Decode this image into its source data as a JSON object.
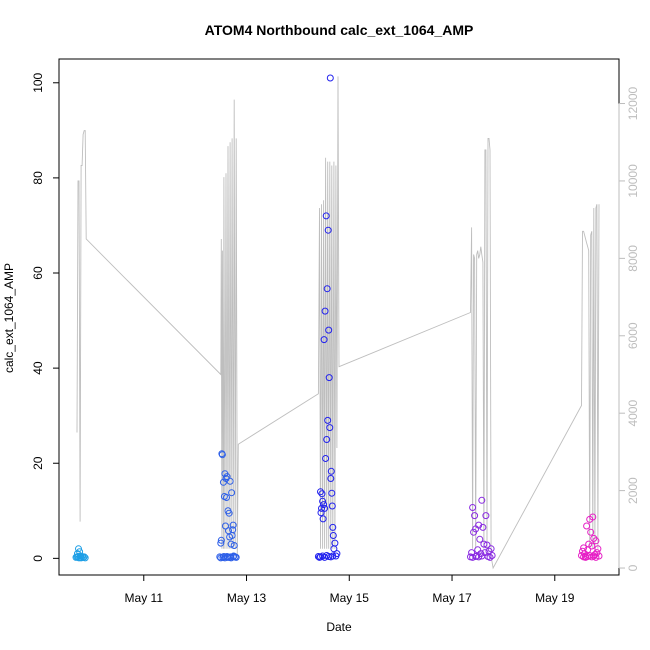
{
  "chart_data": {
    "type": "scatter",
    "title": "ATOM4 Northbound calc_ext_1064_AMP",
    "xlabel": "Date",
    "ylabel": "calc_ext_1064_AMP",
    "x_ticks": [
      "May 11",
      "May 13",
      "May 15",
      "May 17",
      "May 19"
    ],
    "x_tick_days": [
      11,
      13,
      15,
      17,
      19
    ],
    "xlim": [
      9.35,
      20.25
    ],
    "ylim": [
      -3.5,
      105
    ],
    "y_ticks": [
      0,
      20,
      40,
      60,
      80,
      100
    ],
    "y2lim": [
      -180,
      13150
    ],
    "y2_ticks": [
      0,
      2000,
      4000,
      6000,
      8000,
      10000,
      12000
    ],
    "grid": false,
    "secondary_series": {
      "name": "",
      "color": "#bebebe",
      "points": [
        [
          9.7,
          3500
        ],
        [
          9.72,
          10000
        ],
        [
          9.74,
          10000
        ],
        [
          9.76,
          1200
        ],
        [
          9.78,
          10400
        ],
        [
          9.8,
          10400
        ],
        [
          9.82,
          11200
        ],
        [
          9.84,
          11300
        ],
        [
          9.86,
          11300
        ],
        [
          9.88,
          8500
        ],
        [
          12.5,
          5000
        ],
        [
          12.51,
          8500
        ],
        [
          12.52,
          500
        ],
        [
          12.53,
          8200
        ],
        [
          12.55,
          500
        ],
        [
          12.56,
          10100
        ],
        [
          12.58,
          500
        ],
        [
          12.6,
          10200
        ],
        [
          12.62,
          500
        ],
        [
          12.64,
          10900
        ],
        [
          12.66,
          500
        ],
        [
          12.68,
          11000
        ],
        [
          12.7,
          500
        ],
        [
          12.72,
          11100
        ],
        [
          12.74,
          500
        ],
        [
          12.76,
          12100
        ],
        [
          12.78,
          500
        ],
        [
          12.8,
          11100
        ],
        [
          12.82,
          300
        ],
        [
          12.84,
          3200
        ],
        [
          14.4,
          4500
        ],
        [
          14.42,
          9300
        ],
        [
          14.44,
          500
        ],
        [
          14.46,
          9400
        ],
        [
          14.48,
          500
        ],
        [
          14.5,
          9500
        ],
        [
          14.52,
          500
        ],
        [
          14.54,
          10600
        ],
        [
          14.56,
          500
        ],
        [
          14.58,
          10500
        ],
        [
          14.6,
          500
        ],
        [
          14.62,
          10500
        ],
        [
          14.64,
          500
        ],
        [
          14.66,
          10400
        ],
        [
          14.68,
          500
        ],
        [
          14.7,
          10500
        ],
        [
          14.72,
          500
        ],
        [
          14.74,
          10400
        ],
        [
          14.76,
          3100
        ],
        [
          14.78,
          12700
        ],
        [
          14.8,
          5200
        ],
        [
          17.36,
          6600
        ],
        [
          17.38,
          8800
        ],
        [
          17.4,
          500
        ],
        [
          17.42,
          8100
        ],
        [
          17.44,
          8000
        ],
        [
          17.46,
          500
        ],
        [
          17.48,
          8100
        ],
        [
          17.5,
          8200
        ],
        [
          17.52,
          8000
        ],
        [
          17.54,
          8100
        ],
        [
          17.56,
          8300
        ],
        [
          17.58,
          8100
        ],
        [
          17.6,
          7900
        ],
        [
          17.62,
          500
        ],
        [
          17.64,
          10800
        ],
        [
          17.66,
          10800
        ],
        [
          17.68,
          500
        ],
        [
          17.7,
          11100
        ],
        [
          17.72,
          11100
        ],
        [
          17.74,
          10800
        ],
        [
          17.76,
          300
        ],
        [
          17.8,
          0
        ],
        [
          19.52,
          4200
        ],
        [
          19.54,
          8700
        ],
        [
          19.56,
          8700
        ],
        [
          19.58,
          8600
        ],
        [
          19.6,
          8500
        ],
        [
          19.62,
          8400
        ],
        [
          19.64,
          8300
        ],
        [
          19.66,
          8200
        ],
        [
          19.68,
          500
        ],
        [
          19.7,
          8600
        ],
        [
          19.72,
          8700
        ],
        [
          19.74,
          500
        ],
        [
          19.76,
          9300
        ],
        [
          19.78,
          500
        ],
        [
          19.8,
          9300
        ],
        [
          19.82,
          9400
        ],
        [
          19.84,
          500
        ],
        [
          19.86,
          9400
        ]
      ]
    },
    "series": [
      {
        "name": "",
        "color": "#1e9fe6",
        "points": [
          [
            9.68,
            0.2
          ],
          [
            9.7,
            0.3
          ],
          [
            9.71,
            1.0
          ],
          [
            9.72,
            0.4
          ],
          [
            9.73,
            2.0
          ],
          [
            9.74,
            0.1
          ],
          [
            9.75,
            1.4
          ],
          [
            9.76,
            0.2
          ],
          [
            9.77,
            0.5
          ],
          [
            9.78,
            0.1
          ],
          [
            9.8,
            0.4
          ],
          [
            9.82,
            0.2
          ],
          [
            9.84,
            0.3
          ],
          [
            9.86,
            0.1
          ]
        ]
      },
      {
        "name": "",
        "color": "#2d5fe8",
        "points": [
          [
            12.48,
            0.3
          ],
          [
            12.5,
            3.2
          ],
          [
            12.51,
            3.8
          ],
          [
            12.52,
            22.0
          ],
          [
            12.53,
            21.8
          ],
          [
            12.55,
            16.0
          ],
          [
            12.56,
            0.4
          ],
          [
            12.57,
            13.0
          ],
          [
            12.58,
            17.8
          ],
          [
            12.59,
            6.8
          ],
          [
            12.6,
            16.8
          ],
          [
            12.61,
            12.8
          ],
          [
            12.62,
            17.2
          ],
          [
            12.63,
            0.2
          ],
          [
            12.64,
            10.0
          ],
          [
            12.65,
            5.8
          ],
          [
            12.66,
            9.5
          ],
          [
            12.67,
            4.5
          ],
          [
            12.68,
            16.2
          ],
          [
            12.69,
            0.3
          ],
          [
            12.7,
            3.0
          ],
          [
            12.71,
            13.8
          ],
          [
            12.72,
            4.8
          ],
          [
            12.73,
            6.0
          ],
          [
            12.74,
            7.0
          ],
          [
            12.75,
            0.5
          ],
          [
            12.76,
            2.7
          ],
          [
            12.78,
            0.3
          ],
          [
            12.8,
            0.2
          ],
          [
            12.5,
            0.1
          ],
          [
            12.54,
            0.2
          ],
          [
            12.58,
            0.1
          ],
          [
            12.62,
            0.4
          ],
          [
            12.66,
            0.2
          ],
          [
            12.7,
            0.1
          ],
          [
            12.74,
            0.3
          ]
        ]
      },
      {
        "name": "",
        "color": "#2222ee",
        "points": [
          [
            14.4,
            0.4
          ],
          [
            14.42,
            0.2
          ],
          [
            14.44,
            14.0
          ],
          [
            14.45,
            9.6
          ],
          [
            14.46,
            10.5
          ],
          [
            14.47,
            13.6
          ],
          [
            14.48,
            12.0
          ],
          [
            14.49,
            8.3
          ],
          [
            14.5,
            11.3
          ],
          [
            14.51,
            46.0
          ],
          [
            14.52,
            10.5
          ],
          [
            14.53,
            52.0
          ],
          [
            14.54,
            21.0
          ],
          [
            14.55,
            72.0
          ],
          [
            14.56,
            25.0
          ],
          [
            14.57,
            56.7
          ],
          [
            14.58,
            29.0
          ],
          [
            14.59,
            69.0
          ],
          [
            14.6,
            48.0
          ],
          [
            14.61,
            38.0
          ],
          [
            14.62,
            27.5
          ],
          [
            14.63,
            101.0
          ],
          [
            14.64,
            16.8
          ],
          [
            14.65,
            18.3
          ],
          [
            14.66,
            13.7
          ],
          [
            14.67,
            11.0
          ],
          [
            14.68,
            6.5
          ],
          [
            14.69,
            4.8
          ],
          [
            14.7,
            2.0
          ],
          [
            14.72,
            3.2
          ],
          [
            14.74,
            0.5
          ],
          [
            14.76,
            1.0
          ],
          [
            14.44,
            0.3
          ],
          [
            14.48,
            0.5
          ],
          [
            14.52,
            0.2
          ],
          [
            14.56,
            0.6
          ],
          [
            14.6,
            0.4
          ],
          [
            14.64,
            0.3
          ],
          [
            14.68,
            0.5
          ]
        ]
      },
      {
        "name": "",
        "color": "#8a2be2",
        "points": [
          [
            17.36,
            0.3
          ],
          [
            17.38,
            1.2
          ],
          [
            17.4,
            10.7
          ],
          [
            17.42,
            5.5
          ],
          [
            17.44,
            9.0
          ],
          [
            17.46,
            6.2
          ],
          [
            17.48,
            0.5
          ],
          [
            17.5,
            1.8
          ],
          [
            17.52,
            7.0
          ],
          [
            17.54,
            4.0
          ],
          [
            17.56,
            1.0
          ],
          [
            17.58,
            12.2
          ],
          [
            17.6,
            6.5
          ],
          [
            17.62,
            3.0
          ],
          [
            17.64,
            1.2
          ],
          [
            17.66,
            9.0
          ],
          [
            17.68,
            2.8
          ],
          [
            17.7,
            0.4
          ],
          [
            17.72,
            1.5
          ],
          [
            17.74,
            0.2
          ],
          [
            17.76,
            2.0
          ],
          [
            17.78,
            0.6
          ],
          [
            17.4,
            0.2
          ],
          [
            17.46,
            0.4
          ],
          [
            17.52,
            0.3
          ],
          [
            17.58,
            0.5
          ]
        ]
      },
      {
        "name": "",
        "color": "#e61fc6",
        "points": [
          [
            19.52,
            0.6
          ],
          [
            19.54,
            1.5
          ],
          [
            19.56,
            2.2
          ],
          [
            19.58,
            1.0
          ],
          [
            19.6,
            0.4
          ],
          [
            19.62,
            6.8
          ],
          [
            19.64,
            1.8
          ],
          [
            19.66,
            3.0
          ],
          [
            19.68,
            8.2
          ],
          [
            19.7,
            5.5
          ],
          [
            19.72,
            2.6
          ],
          [
            19.74,
            8.7
          ],
          [
            19.76,
            4.2
          ],
          [
            19.78,
            0.8
          ],
          [
            19.8,
            3.7
          ],
          [
            19.82,
            1.2
          ],
          [
            19.84,
            2.0
          ],
          [
            19.86,
            0.5
          ],
          [
            19.56,
            0.3
          ],
          [
            19.6,
            0.2
          ],
          [
            19.64,
            0.4
          ],
          [
            19.68,
            0.6
          ],
          [
            19.72,
            0.3
          ],
          [
            19.76,
            0.5
          ],
          [
            19.8,
            0.2
          ]
        ]
      }
    ]
  }
}
